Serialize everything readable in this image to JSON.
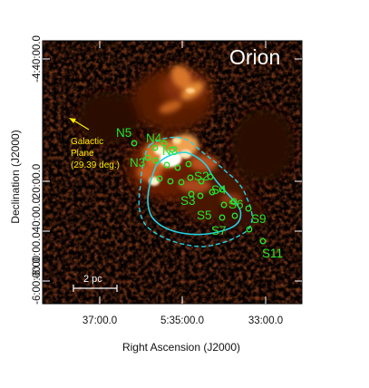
{
  "panel_title": "Orion",
  "axes": {
    "xlabel": "Right Ascension (J2000)",
    "ylabel": "Declination (J2000)",
    "x_ticks": [
      "37:00.0",
      "5:35:00.0",
      "33:00.0"
    ],
    "y_ticks": [
      "-4:40:00.0",
      "20:00.0",
      "40:00.0",
      "-6:00:00.0"
    ],
    "y_tick_overlap": "-6:00:00.040:00.0"
  },
  "annotations": {
    "galactic_plane": [
      "Galactic",
      "Plane",
      "(29.39 deg.)"
    ],
    "scale_bar": "2 pc"
  },
  "sources": [
    "N5",
    "N4",
    "N3",
    "N3",
    "S2",
    "S4",
    "S3",
    "S6",
    "S5",
    "S9",
    "S7",
    "S11"
  ],
  "colors": {
    "markers": "#22e62c",
    "contour": "#22d3e6",
    "arrow": "#ffea00",
    "background": "#000000"
  }
}
